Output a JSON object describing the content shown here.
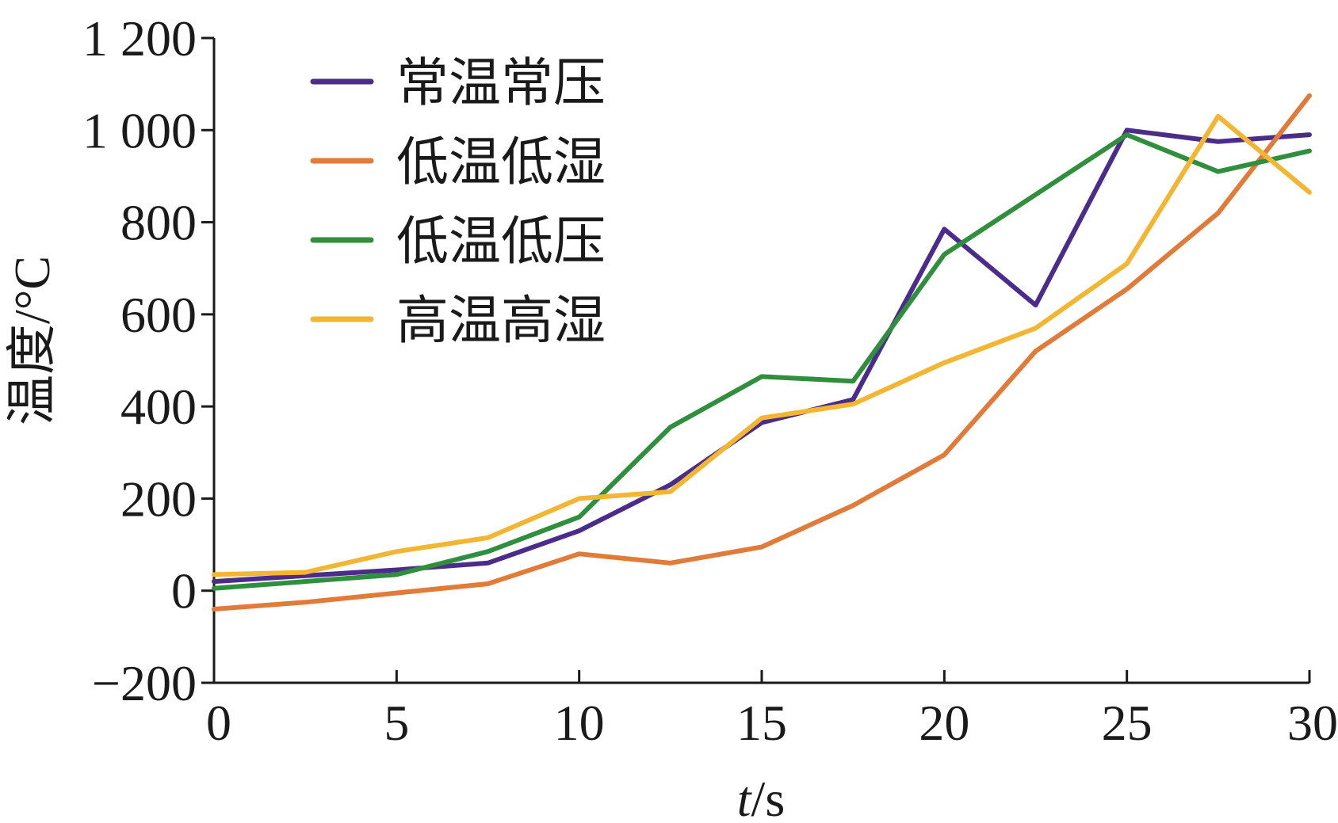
{
  "chart_data": {
    "type": "line",
    "xlabel_italic": "t",
    "xlabel_unit": "/s",
    "ylabel": "温度/°C",
    "xlim": [
      0,
      30
    ],
    "ylim": [
      -200,
      1200
    ],
    "xticks": [
      0,
      5,
      10,
      15,
      20,
      25,
      30
    ],
    "xtick_labels": [
      "0",
      "5",
      "10",
      "15",
      "20",
      "25",
      "30"
    ],
    "yticks": [
      -200,
      0,
      200,
      400,
      600,
      800,
      1000,
      1200
    ],
    "ytick_labels": [
      "−200",
      "0",
      "200",
      "400",
      "600",
      "800",
      "1 000",
      "1 200"
    ],
    "grid": false,
    "legend_position": "top-left",
    "series": [
      {
        "name": "常温常压",
        "color": "#4b2c8a",
        "x": [
          0,
          5,
          7.5,
          10,
          12.5,
          15,
          17.5,
          20,
          22.5,
          25,
          27.5,
          30
        ],
        "y": [
          20,
          45,
          60,
          130,
          230,
          365,
          415,
          785,
          620,
          1000,
          975,
          990
        ]
      },
      {
        "name": "低温低湿",
        "color": "#e07b3a",
        "x": [
          0,
          2.5,
          5,
          7.5,
          10,
          12.5,
          15,
          17.5,
          20,
          22.5,
          25,
          27.5,
          30
        ],
        "y": [
          -40,
          -25,
          -5,
          15,
          80,
          60,
          95,
          185,
          295,
          520,
          655,
          820,
          1075
        ]
      },
      {
        "name": "低温低压",
        "color": "#2f8f3c",
        "x": [
          0,
          5,
          7.5,
          10,
          12.5,
          15,
          17.5,
          20,
          25,
          27.5,
          30
        ],
        "y": [
          5,
          35,
          85,
          160,
          355,
          465,
          455,
          730,
          990,
          910,
          955
        ]
      },
      {
        "name": "高温高湿",
        "color": "#f2b632",
        "x": [
          0,
          2.5,
          5,
          7.5,
          10,
          12.5,
          15,
          17.5,
          20,
          22.5,
          25,
          27.5,
          30
        ],
        "y": [
          35,
          40,
          85,
          115,
          200,
          215,
          375,
          405,
          495,
          570,
          710,
          1030,
          865
        ]
      }
    ]
  }
}
